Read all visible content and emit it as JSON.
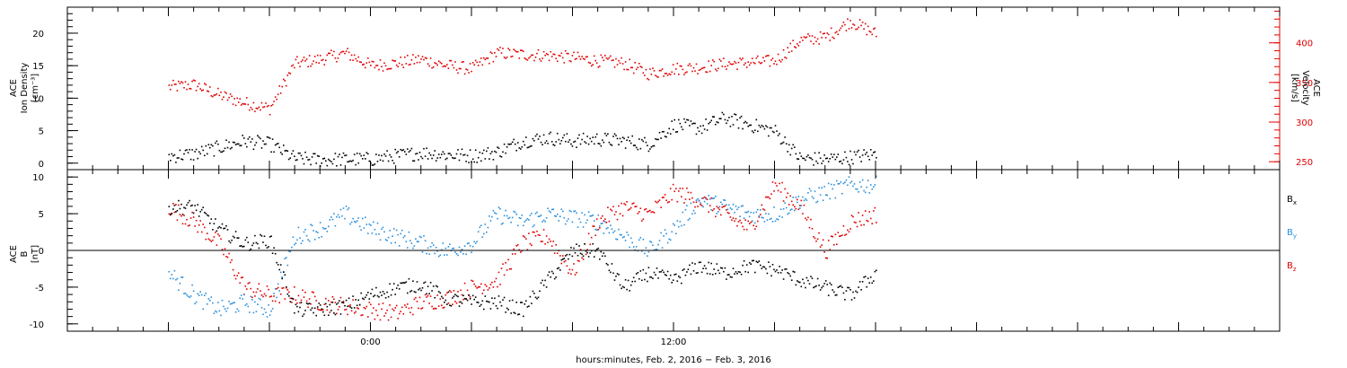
{
  "chart_data": [
    {
      "type": "scatter",
      "panel": "top",
      "ylabel_left": [
        "ACE",
        "Ion Density",
        "[cm⁻³]"
      ],
      "ylabel_right": [
        "ACE",
        "Velocity",
        "[km/s]"
      ],
      "ylim_left": [
        -1,
        24
      ],
      "ylim_right": [
        240,
        445
      ],
      "yticks_left": [
        0,
        5,
        10,
        15,
        20
      ],
      "yticks_right": [
        250,
        300,
        350,
        400
      ],
      "ytick_labels_left": [
        "0",
        "5",
        "10",
        "15",
        "20"
      ],
      "ytick_labels_right": [
        "250",
        "300",
        "350",
        "400"
      ],
      "series": [
        {
          "name": "",
          "axis": "left",
          "color": "#000000",
          "x_hours": [
            -8,
            -7,
            -6,
            -5,
            -4,
            -3,
            -2,
            -1,
            0,
            1,
            2,
            3,
            4,
            5,
            6,
            7,
            8,
            9,
            10,
            11,
            12,
            13,
            14,
            15,
            16,
            17,
            18,
            19,
            20
          ],
          "values": [
            1.2,
            1.5,
            2.5,
            3.5,
            3,
            0.8,
            0.6,
            0.7,
            0.7,
            1.2,
            1.7,
            1.4,
            1.2,
            1.8,
            3.5,
            4,
            3.5,
            3.8,
            3.5,
            3,
            6,
            5.5,
            7,
            6,
            5,
            0.8,
            0.7,
            1,
            1.5
          ]
        },
        {
          "name": "",
          "axis": "right",
          "color": "#e00000",
          "x_hours": [
            -8,
            -7,
            -6,
            -5,
            -4,
            -3,
            -2,
            -1,
            0,
            1,
            2,
            3,
            4,
            5,
            6,
            7,
            8,
            9,
            10,
            11,
            12,
            13,
            14,
            15,
            16,
            17,
            18,
            19,
            20
          ],
          "values": [
            345,
            348,
            335,
            325,
            318,
            375,
            380,
            388,
            372,
            375,
            380,
            372,
            368,
            388,
            386,
            385,
            382,
            378,
            375,
            362,
            368,
            370,
            374,
            376,
            378,
            404,
            408,
            428,
            412
          ]
        }
      ]
    },
    {
      "type": "scatter",
      "panel": "bottom",
      "ylabel": [
        "ACE",
        "B",
        "[nT]"
      ],
      "ylim": [
        -11,
        11
      ],
      "yticks": [
        -10,
        -5,
        0,
        5,
        10
      ],
      "ytick_labels": [
        "-10",
        "-5",
        "0",
        "5",
        "10"
      ],
      "zero_line": true,
      "legend": {
        "placement": "right",
        "items": [
          "Bx",
          "By",
          "Bz"
        ]
      },
      "series": [
        {
          "name": "Bx",
          "color": "#000000",
          "x_hours": [
            -8,
            -7,
            -6,
            -5,
            -4,
            -3,
            -2,
            -1,
            0,
            1,
            2,
            3,
            4,
            5,
            6,
            7,
            8,
            9,
            10,
            11,
            12,
            13,
            14,
            15,
            16,
            17,
            18,
            19,
            20
          ],
          "values": [
            6,
            6,
            3,
            1,
            1.5,
            -8,
            -8,
            -7.5,
            -6,
            -5,
            -4.5,
            -6.5,
            -7,
            -7,
            -8,
            -4,
            0,
            0,
            -5,
            -3,
            -4,
            -2,
            -3,
            -2,
            -2.5,
            -4,
            -5,
            -6,
            -3
          ]
        },
        {
          "name": "By",
          "color": "#2a8fdc",
          "x_hours": [
            -8,
            -7,
            -6,
            -5,
            -4,
            -3,
            -2,
            -1,
            0,
            1,
            2,
            3,
            4,
            5,
            6,
            7,
            8,
            9,
            10,
            11,
            12,
            13,
            14,
            15,
            16,
            17,
            18,
            19,
            20
          ],
          "values": [
            -3,
            -6,
            -8,
            -7,
            -8,
            2,
            3,
            5,
            3,
            2,
            1,
            0,
            1,
            5,
            4,
            5,
            4.5,
            4,
            2,
            0,
            3,
            7,
            6,
            5,
            5,
            7,
            8,
            9,
            9
          ]
        },
        {
          "name": "Bz",
          "color": "#e00000",
          "x_hours": [
            -8,
            -7,
            -6,
            -5,
            -4,
            -3,
            -2,
            -1,
            0,
            1,
            2,
            3,
            4,
            5,
            6,
            7,
            8,
            9,
            10,
            11,
            12,
            13,
            14,
            15,
            16,
            17,
            18,
            19,
            20
          ],
          "values": [
            6,
            4,
            1,
            -5,
            -6,
            -6,
            -7,
            -7.5,
            -8,
            -8.5,
            -7,
            -6.5,
            -5,
            -4,
            1,
            2,
            -3,
            4,
            6,
            5,
            8,
            7,
            5,
            3,
            9,
            6,
            0,
            4,
            5
          ]
        }
      ]
    }
  ],
  "x_axis": {
    "xlim_hours": [
      -12,
      36
    ],
    "tick_labels": [
      {
        "hour": 0,
        "label": "0:00"
      },
      {
        "hour": 12,
        "label": "12:00"
      }
    ],
    "minor_ticks_every_hours": 1,
    "major_ticks_every_hours": 4,
    "xlabel": "hours:minutes, Feb.  2, 2016 − Feb.  3, 2016"
  },
  "legend_labels": {
    "bx": "B",
    "bx_sub": "x",
    "by": "B",
    "by_sub": "y",
    "bz": "B",
    "bz_sub": "z"
  }
}
